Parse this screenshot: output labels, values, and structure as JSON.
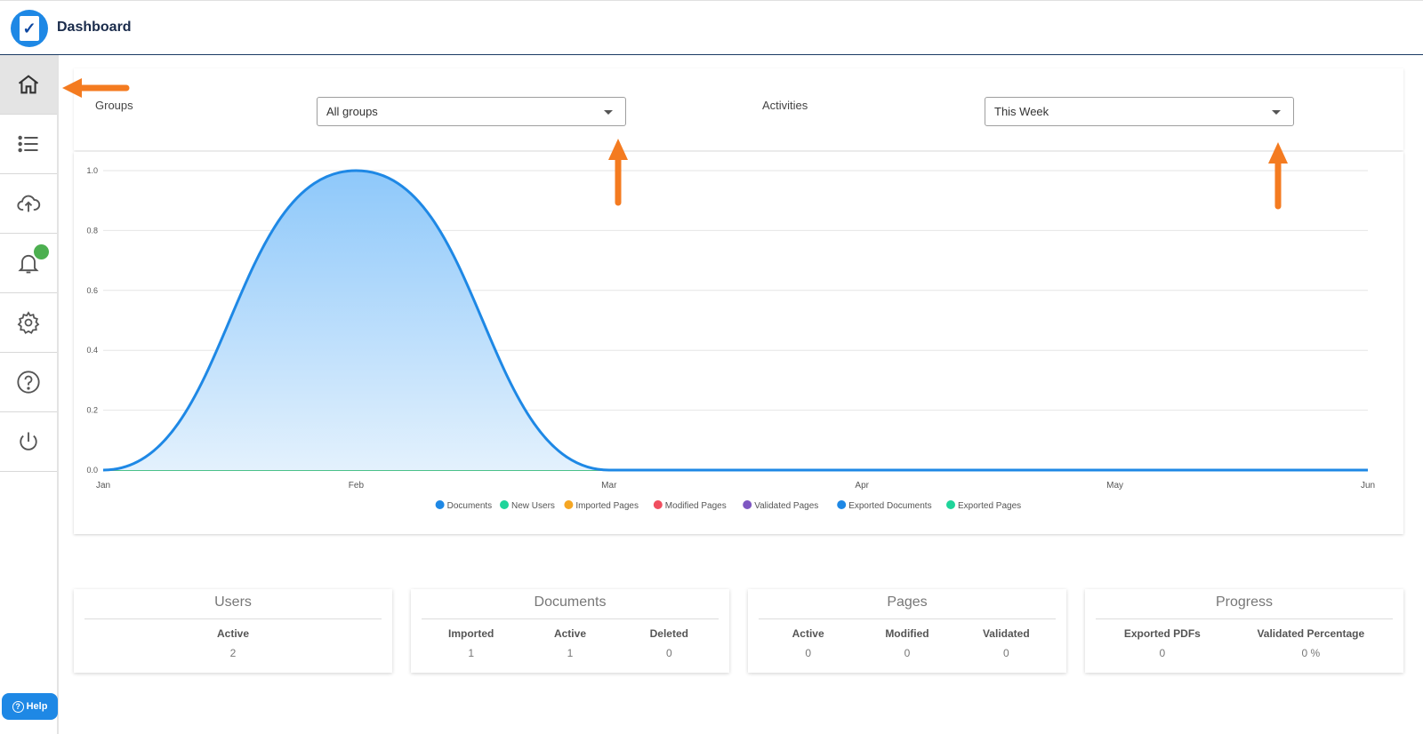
{
  "header": {
    "title": "Dashboard",
    "logo_icon": "clipboard-check-icon"
  },
  "sidebar": {
    "items": [
      {
        "name": "home",
        "icon": "home-icon",
        "active": true
      },
      {
        "name": "list",
        "icon": "list-icon"
      },
      {
        "name": "upload",
        "icon": "cloud-upload-icon"
      },
      {
        "name": "notifications",
        "icon": "bell-icon",
        "badge_color": "#4caf50"
      },
      {
        "name": "settings",
        "icon": "gear-icon"
      },
      {
        "name": "help",
        "icon": "question-circle-icon"
      },
      {
        "name": "logout",
        "icon": "power-icon"
      }
    ],
    "help_button": {
      "label": "Help"
    }
  },
  "filters": {
    "groups_label": "Groups",
    "groups_value": "All groups",
    "activities_label": "Activities",
    "activities_value": "This Week"
  },
  "chart_data": {
    "type": "area",
    "title": "",
    "xlabel": "",
    "ylabel": "",
    "x": [
      "Jan",
      "Feb",
      "Mar",
      "Apr",
      "May",
      "Jun"
    ],
    "ylim": [
      0,
      1
    ],
    "yticks": [
      "0.0",
      "0.2",
      "0.4",
      "0.6",
      "0.8",
      "1.0"
    ],
    "grid": true,
    "legend_position": "bottom",
    "series": [
      {
        "name": "Documents",
        "values": [
          0,
          1,
          0,
          0,
          0,
          0
        ],
        "color": "#1e88e5"
      },
      {
        "name": "New Users",
        "values": [
          0,
          0,
          0,
          0,
          0,
          0
        ],
        "color": "#1fd49a"
      },
      {
        "name": "Imported Pages",
        "values": [
          0,
          0,
          0,
          0,
          0,
          0
        ],
        "color": "#f5a623"
      },
      {
        "name": "Modified Pages",
        "values": [
          0,
          0,
          0,
          0,
          0,
          0
        ],
        "color": "#f04e5f"
      },
      {
        "name": "Validated Pages",
        "values": [
          0,
          0,
          0,
          0,
          0,
          0
        ],
        "color": "#7e57c2"
      },
      {
        "name": "Exported Documents",
        "values": [
          0,
          0,
          0,
          0,
          0,
          0
        ],
        "color": "#1e88e5"
      },
      {
        "name": "Exported Pages",
        "values": [
          0,
          0,
          0,
          0,
          0,
          0
        ],
        "color": "#1fd49a"
      }
    ]
  },
  "stats": {
    "users": {
      "title": "Users",
      "cols": [
        {
          "label": "Active",
          "value": "2"
        }
      ]
    },
    "documents": {
      "title": "Documents",
      "cols": [
        {
          "label": "Imported",
          "value": "1"
        },
        {
          "label": "Active",
          "value": "1"
        },
        {
          "label": "Deleted",
          "value": "0"
        }
      ]
    },
    "pages": {
      "title": "Pages",
      "cols": [
        {
          "label": "Active",
          "value": "0"
        },
        {
          "label": "Modified",
          "value": "0"
        },
        {
          "label": "Validated",
          "value": "0"
        }
      ]
    },
    "progress": {
      "title": "Progress",
      "cols": [
        {
          "label": "Exported PDFs",
          "value": "0"
        },
        {
          "label": "Validated Percentage",
          "value": "0 %"
        }
      ]
    }
  },
  "annotations": {
    "arrow_color": "#f47b20"
  }
}
